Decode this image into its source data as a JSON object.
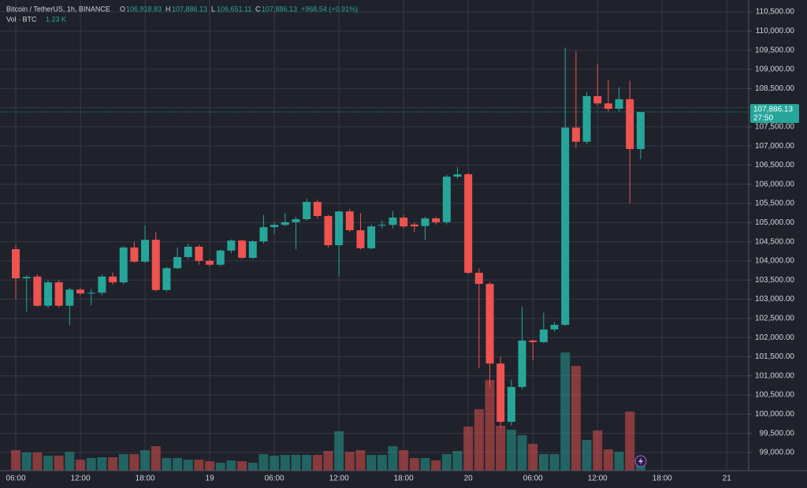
{
  "chart_data": {
    "type": "candlestick",
    "header": {
      "symbol": "Bitcoin / TetherUS, 1h, BINANCE",
      "o": "O",
      "open": "106,918.83",
      "h": "H",
      "high": "107,886.13",
      "l": "L",
      "low": "106,651.11",
      "c": "C",
      "close": "107,886.13",
      "change": "+968.54 (+0.91%)",
      "volume_name": "Vol · BTC",
      "volume": "1.23 K"
    },
    "up_color": "#26a69a",
    "down_color": "#ef5350",
    "x": [
      6,
      7,
      8,
      9,
      10,
      11,
      12,
      13,
      14,
      15,
      16,
      17,
      18,
      19,
      20,
      21,
      22,
      23,
      24,
      25,
      26,
      27,
      28,
      29,
      30,
      31,
      32,
      33,
      34,
      35,
      36,
      37,
      38,
      39,
      40,
      41,
      42,
      43,
      44,
      45,
      46,
      47,
      48,
      49,
      50,
      51,
      52,
      53,
      54,
      55,
      56,
      57,
      58,
      59,
      60,
      61,
      62,
      63,
      64
    ],
    "open": [
      104307,
      103545,
      103590,
      102830,
      103440,
      102830,
      103250,
      103160,
      103170,
      103590,
      103440,
      104350,
      103980,
      104550,
      103240,
      103810,
      104100,
      104370,
      104000,
      103900,
      104270,
      104530,
      104080,
      104510,
      104880,
      104940,
      105010,
      105090,
      105540,
      105170,
      104410,
      105290,
      104800,
      104330,
      104920,
      104940,
      105130,
      104950,
      104910,
      105110,
      105010,
      106200,
      106260,
      103690,
      103400,
      101320,
      99800,
      100710,
      101920,
      101880,
      102210,
      102330,
      107480,
      107110,
      108300,
      108110,
      107970,
      108220,
      106918.83
    ],
    "high": [
      104420,
      103620,
      103650,
      103500,
      103500,
      103300,
      103300,
      103260,
      103640,
      103700,
      104380,
      104500,
      104920,
      104750,
      103850,
      104350,
      104450,
      104420,
      104050,
      104300,
      104560,
      104560,
      104540,
      105200,
      105000,
      105250,
      105150,
      105620,
      105600,
      105200,
      105300,
      105350,
      105250,
      104950,
      105050,
      105300,
      105200,
      105000,
      105150,
      105150,
      106250,
      106450,
      106300,
      103800,
      103450,
      101500,
      100900,
      102800,
      101950,
      102650,
      102400,
      109570,
      109470,
      108400,
      109150,
      108720,
      108530,
      108700,
      107886.13
    ],
    "low": [
      103000,
      102680,
      102800,
      102770,
      102780,
      102330,
      103100,
      102840,
      103100,
      103380,
      103390,
      103950,
      103950,
      103200,
      103200,
      103780,
      104050,
      103900,
      103850,
      103850,
      104200,
      104050,
      104050,
      104450,
      104700,
      104900,
      104300,
      105050,
      105100,
      104350,
      103600,
      104750,
      104300,
      104300,
      104850,
      104850,
      104850,
      104750,
      104550,
      104950,
      104950,
      106150,
      103650,
      101200,
      100700,
      99650,
      99700,
      100650,
      101400,
      101850,
      102150,
      102300,
      106950,
      107050,
      108050,
      107900,
      107900,
      105500,
      106651.11
    ],
    "close": [
      103545,
      103580,
      102830,
      103440,
      102830,
      103250,
      103150,
      103170,
      103590,
      103440,
      104350,
      103980,
      104550,
      103240,
      103810,
      104100,
      104370,
      104000,
      103900,
      104270,
      104530,
      104080,
      104510,
      104880,
      104940,
      105010,
      105090,
      105540,
      105170,
      104410,
      105290,
      104800,
      104330,
      104900,
      104940,
      105130,
      104900,
      104900,
      105110,
      105010,
      106200,
      106260,
      103690,
      103400,
      101320,
      99800,
      100710,
      101920,
      101880,
      102210,
      102330,
      107480,
      107110,
      108300,
      108110,
      107970,
      108220,
      106920,
      107886.13
    ],
    "volume": [
      2132,
      1886,
      1886,
      1558,
      1558,
      1968,
      1148,
      1312,
      1394,
      1394,
      1722,
      1722,
      2132,
      2542,
      1312,
      1312,
      1148,
      1148,
      984,
      820,
      1066,
      984,
      820,
      1722,
      1558,
      1640,
      1640,
      1640,
      1640,
      2050,
      4100,
      1968,
      2132,
      1640,
      1640,
      2542,
      2132,
      1312,
      1312,
      1066,
      1722,
      2050,
      4592,
      6396,
      9430,
      4674,
      4264,
      3690,
      2788,
      1722,
      1722,
      12300,
      10906,
      3198,
      4182,
      2214,
      1968,
      6150,
      1230
    ],
    "xlim": [
      5.12,
      74.03
    ],
    "ylim": [
      98525,
      110809
    ],
    "vlim": [
      0,
      49000
    ],
    "yticks": [
      {
        "value": 99000,
        "label": "99,000.00"
      },
      {
        "value": 99500,
        "label": "99,500.00"
      },
      {
        "value": 100000,
        "label": "100,000.00"
      },
      {
        "value": 100500,
        "label": "100,500.00"
      },
      {
        "value": 101000,
        "label": "101,000.00"
      },
      {
        "value": 101500,
        "label": "101,500.00"
      },
      {
        "value": 102000,
        "label": "102,000.00"
      },
      {
        "value": 102500,
        "label": "102,500.00"
      },
      {
        "value": 103000,
        "label": "103,000.00"
      },
      {
        "value": 103500,
        "label": "103,500.00"
      },
      {
        "value": 104000,
        "label": "104,000.00"
      },
      {
        "value": 104500,
        "label": "104,500.00"
      },
      {
        "value": 105000,
        "label": "105,000.00"
      },
      {
        "value": 105500,
        "label": "105,500.00"
      },
      {
        "value": 106000,
        "label": "106,000.00"
      },
      {
        "value": 106500,
        "label": "106,500.00"
      },
      {
        "value": 107000,
        "label": "107,000.00"
      },
      {
        "value": 107500,
        "label": "107,500.00"
      },
      {
        "value": 108000,
        "label": "108,000.00"
      },
      {
        "value": 108500,
        "label": "108,500.00"
      },
      {
        "value": 109000,
        "label": "109,000.00"
      },
      {
        "value": 109500,
        "label": "109,500.00"
      },
      {
        "value": 110000,
        "label": "110,000.00"
      },
      {
        "value": 110500,
        "label": "110,500.00"
      }
    ],
    "xticks": [
      {
        "value": 6,
        "label": "06:00"
      },
      {
        "value": 12,
        "label": "12:00"
      },
      {
        "value": 18,
        "label": "18:00"
      },
      {
        "value": 24,
        "label": "19"
      },
      {
        "value": 30,
        "label": "06:00"
      },
      {
        "value": 36,
        "label": "12:00"
      },
      {
        "value": 42,
        "label": "18:00"
      },
      {
        "value": 48,
        "label": "20"
      },
      {
        "value": 54,
        "label": "06:00"
      },
      {
        "value": 60,
        "label": "12:00"
      },
      {
        "value": 66,
        "label": "18:00"
      },
      {
        "value": 72,
        "label": "21"
      }
    ],
    "last_price": {
      "value": 107886.13,
      "label": "107,886.13"
    },
    "countdown": "27:50",
    "grid": true
  }
}
